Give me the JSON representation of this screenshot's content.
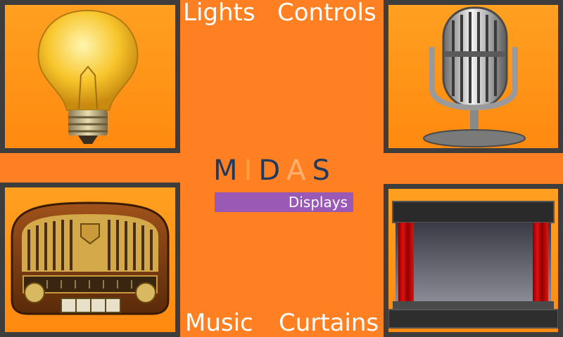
{
  "tiles": {
    "lights": {
      "label": "Lights"
    },
    "controls": {
      "label": "Controls"
    },
    "music": {
      "label": "Music"
    },
    "curtains": {
      "label": "Curtains"
    }
  },
  "logo": {
    "letters": [
      "M",
      "I",
      "D",
      "A",
      "S"
    ],
    "letter_colors": [
      "#1f3a5f",
      "#ff9f40",
      "#1f3a5f",
      "#ffb070",
      "#1f3a5f"
    ],
    "subtitle": "Displays",
    "bar_color": "#9b59b6"
  },
  "colors": {
    "background": "#ff8022",
    "tile_border": "#3d3d3d",
    "label": "#ffffff"
  },
  "icons": [
    "light-bulb-icon",
    "microphone-icon",
    "radio-icon",
    "stage-curtains-icon"
  ]
}
